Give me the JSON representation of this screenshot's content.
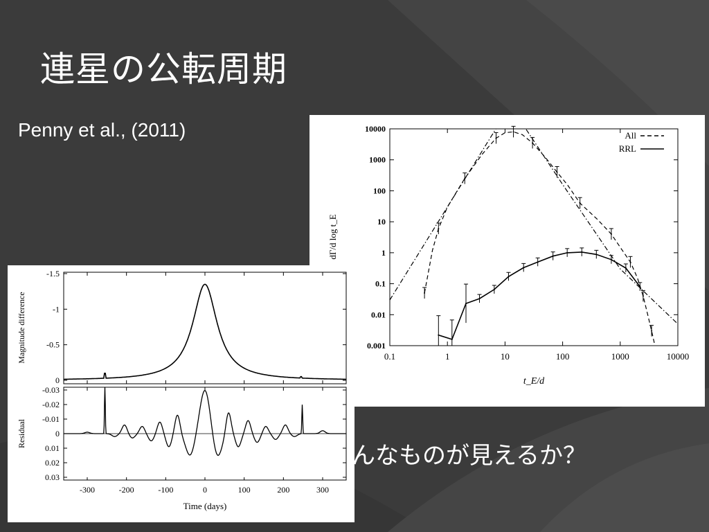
{
  "slide": {
    "title": "連星の公転周期",
    "citation": "Penny et al., (2011)",
    "body_text": "んなものが見えるか？"
  },
  "colors": {
    "background": "#3b3b3b",
    "text": "#ffffff",
    "figure_bg": "#ffffff"
  },
  "chart_data": [
    {
      "type": "line",
      "xlabel": "t_E/d",
      "ylabel": "dΓ/d log t_E",
      "x_scale": "log",
      "y_scale": "log",
      "xlim": [
        0.1,
        10000
      ],
      "ylim": [
        0.001,
        10000
      ],
      "x_ticks": [
        "0.1",
        "1",
        "10",
        "100",
        "1000",
        "10000"
      ],
      "y_ticks": [
        "0.001",
        "0.01",
        "0.1",
        "1",
        "10",
        "100",
        "1000",
        "10000"
      ],
      "legend_position": "top-right",
      "series": [
        {
          "name": "All",
          "style": "dashed",
          "x": [
            0.4,
            0.55,
            0.7,
            1.0,
            2.0,
            4.0,
            7.0,
            10,
            14,
            20,
            30,
            50,
            80,
            120,
            200,
            400,
            700,
            1000,
            1500,
            2000,
            2500,
            3000,
            3500,
            4000
          ],
          "y": [
            0.05,
            1.2,
            6,
            30,
            250,
            1500,
            5000,
            7500,
            8000,
            6500,
            3500,
            1200,
            400,
            160,
            40,
            12,
            4,
            1.5,
            0.5,
            0.15,
            0.04,
            0.01,
            0.003,
            0.001
          ]
        },
        {
          "name": "RRL",
          "style": "solid",
          "x": [
            0.7,
            1.2,
            2.1,
            3.6,
            6.5,
            11.5,
            21,
            37,
            68,
            120,
            215,
            385,
            700,
            1250,
            2200
          ],
          "y": [
            0.0022,
            0.0016,
            0.023,
            0.033,
            0.065,
            0.17,
            0.33,
            0.5,
            0.78,
            1.0,
            1.05,
            0.88,
            0.6,
            0.32,
            0.08
          ]
        },
        {
          "name": "",
          "style": "dashdot",
          "x": [
            0.1,
            1,
            10,
            14,
            100,
            1000,
            10000
          ],
          "y": [
            0.03,
            30,
            30000,
            40000,
            160,
            0.3,
            0.005
          ]
        }
      ]
    },
    {
      "type": "line",
      "panels": [
        {
          "ylabel": "Magnitude difference",
          "y_ticks": [
            "-1.5",
            "-1",
            "-0.5",
            "0"
          ],
          "ylim": [
            0,
            -1.5
          ]
        },
        {
          "ylabel": "Residual",
          "y_ticks": [
            "-0.03",
            "-0.02",
            "-0.01",
            "0",
            "0.01",
            "0.02",
            "0.03"
          ],
          "ylim": [
            -0.03,
            0.03
          ]
        }
      ],
      "xlabel": "Time (days)",
      "x_ticks": [
        "-300",
        "-200",
        "-100",
        "0",
        "100",
        "200",
        "300"
      ],
      "xlim": [
        -360,
        360
      ],
      "lightcurve": {
        "peak": -1.35,
        "peak_time": 0,
        "spike_time": -255,
        "spike_height": -0.07
      },
      "residual_features": [
        {
          "t": -300,
          "amp": -0.001
        },
        {
          "t": -255,
          "amp": -0.032
        },
        {
          "t": -205,
          "amp": -0.006
        },
        {
          "t": -160,
          "amp": -0.005
        },
        {
          "t": -115,
          "amp": -0.008
        },
        {
          "t": -70,
          "amp": -0.013
        },
        {
          "t": 0,
          "amp": -0.03
        },
        {
          "t": 60,
          "amp": -0.015
        },
        {
          "t": 110,
          "amp": -0.009
        },
        {
          "t": 155,
          "amp": -0.005
        },
        {
          "t": 205,
          "amp": -0.006
        },
        {
          "t": 248,
          "amp": -0.02
        },
        {
          "t": 300,
          "amp": -0.002
        }
      ]
    }
  ]
}
